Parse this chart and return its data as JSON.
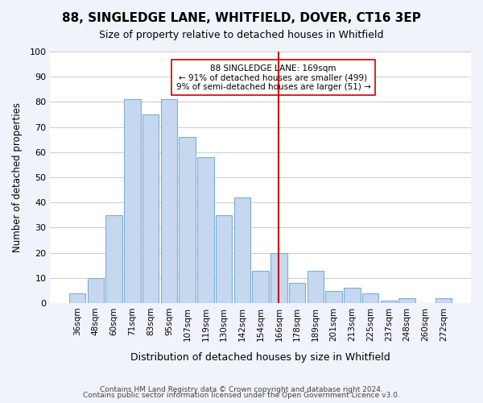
{
  "title": "88, SINGLEDGE LANE, WHITFIELD, DOVER, CT16 3EP",
  "subtitle": "Size of property relative to detached houses in Whitfield",
  "xlabel": "Distribution of detached houses by size in Whitfield",
  "ylabel": "Number of detached properties",
  "bar_labels": [
    "36sqm",
    "48sqm",
    "60sqm",
    "71sqm",
    "83sqm",
    "95sqm",
    "107sqm",
    "119sqm",
    "130sqm",
    "142sqm",
    "154sqm",
    "166sqm",
    "178sqm",
    "189sqm",
    "201sqm",
    "213sqm",
    "225sqm",
    "237sqm",
    "248sqm",
    "260sqm",
    "272sqm"
  ],
  "bar_values": [
    4,
    10,
    35,
    81,
    75,
    81,
    66,
    58,
    35,
    42,
    13,
    20,
    8,
    13,
    5,
    6,
    4,
    1,
    2,
    0,
    2
  ],
  "bar_color": "#c5d8f0",
  "bar_edge_color": "#7bafd4",
  "marker_index": 11,
  "marker_label": "166sqm",
  "marker_line_color": "#cc0000",
  "annotation_text": "88 SINGLEDGE LANE: 169sqm\n← 91% of detached houses are smaller (499)\n9% of semi-detached houses are larger (51) →",
  "annotation_box_edge": "#cc0000",
  "ylim": [
    0,
    100
  ],
  "yticks": [
    0,
    10,
    20,
    30,
    40,
    50,
    60,
    70,
    80,
    90,
    100
  ],
  "footer_line1": "Contains HM Land Registry data © Crown copyright and database right 2024.",
  "footer_line2": "Contains public sector information licensed under the Open Government Licence v3.0.",
  "bg_color": "#f0f4fa",
  "plot_bg_color": "#ffffff"
}
